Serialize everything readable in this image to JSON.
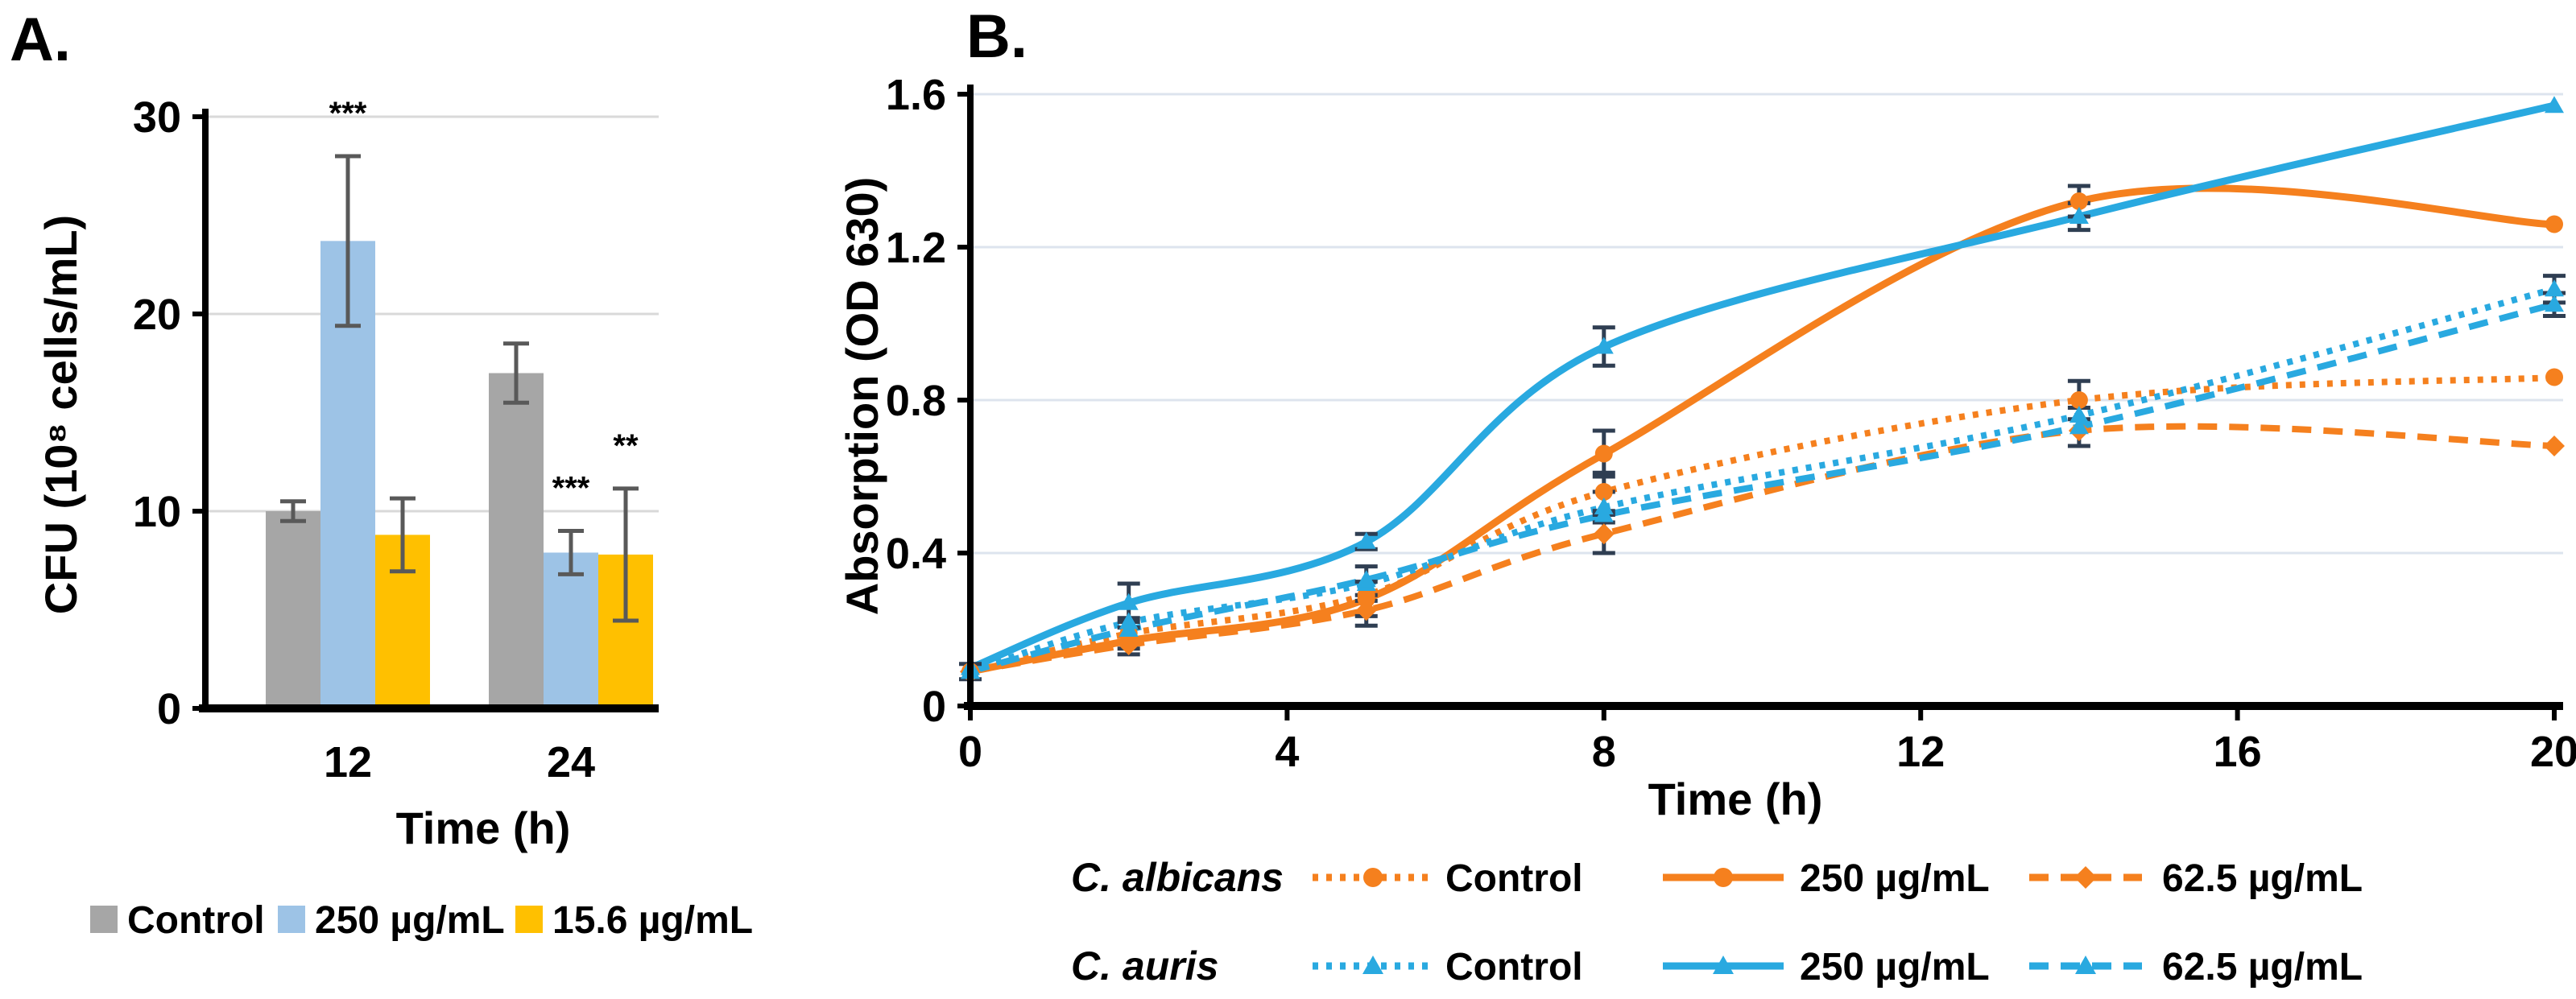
{
  "panels": {
    "a": {
      "label": "A."
    },
    "b": {
      "label": "B."
    }
  },
  "colors": {
    "albicans_orange": "#F5801E",
    "auris_blue": "#29A9E0",
    "bar_gray": "#A6A6A6",
    "bar_blue": "#9DC3E6",
    "bar_gold": "#FFC000",
    "errorbar_a": "#595959",
    "errorbar_b": "#2F3E52",
    "grid_a": "#D9D9D9",
    "grid_b": "#DDE4EE",
    "axis": "#000000"
  },
  "chart_data": [
    {
      "panel": "A",
      "type": "bar",
      "title": "",
      "xlabel": "Time (h)",
      "ylabel": "CFU (10⁸ cells/mL)",
      "categories": [
        "12",
        "24"
      ],
      "yticks": [
        0,
        10,
        20,
        30
      ],
      "ylim": [
        0,
        30
      ],
      "grid": true,
      "legend_position": "bottom",
      "series": [
        {
          "name": "Control",
          "color": "#A6A6A6",
          "values": [
            10.0,
            17.0
          ],
          "errors": [
            0.5,
            1.5
          ],
          "significance": [
            null,
            null
          ]
        },
        {
          "name": "250 µg/mL",
          "color": "#9DC3E6",
          "values": [
            23.7,
            7.9
          ],
          "errors": [
            4.3,
            1.1
          ],
          "significance": [
            "***",
            "***"
          ]
        },
        {
          "name": "15.6 µg/mL",
          "color": "#FFC000",
          "values": [
            8.8,
            7.8
          ],
          "errors": [
            1.85,
            3.35
          ],
          "significance": [
            null,
            "**"
          ]
        }
      ]
    },
    {
      "panel": "B",
      "type": "line",
      "title": "",
      "xlabel": "Time (h)",
      "ylabel": "Absorption (OD 630)",
      "x": [
        0,
        2,
        5,
        8,
        14,
        20
      ],
      "xticks": [
        0,
        4,
        8,
        12,
        16,
        20
      ],
      "yticks": [
        0,
        0.4,
        0.8,
        1.2,
        1.6
      ],
      "xlim": [
        0,
        20
      ],
      "ylim": [
        0,
        1.6
      ],
      "grid": true,
      "legend_position": "bottom",
      "groups": [
        {
          "species": "C. albicans",
          "color": "#F5801E",
          "series": [
            {
              "name": "Control",
              "style": "dotted",
              "marker": "circle",
              "values": [
                0.09,
                0.19,
                0.29,
                0.56,
                0.8,
                0.86
              ],
              "errors": [
                0,
                0.04,
                0,
                0.05,
                0.05,
                0
              ]
            },
            {
              "name": "250 µg/mL",
              "style": "solid",
              "marker": "circle",
              "values": [
                0.09,
                0.17,
                0.28,
                0.66,
                1.32,
                1.26
              ],
              "errors": [
                0.02,
                0.035,
                0.045,
                0.06,
                0.04,
                0
              ]
            },
            {
              "name": "62.5 µg/mL",
              "style": "dashed",
              "marker": "diamond",
              "values": [
                0.09,
                0.16,
                0.25,
                0.45,
                0.72,
                0.68
              ],
              "errors": [
                0,
                0,
                0.04,
                0.05,
                0,
                0
              ]
            }
          ]
        },
        {
          "species": "C. auris",
          "color": "#29A9E0",
          "series": [
            {
              "name": "Control",
              "style": "dotted",
              "marker": "triangle",
              "values": [
                0.09,
                0.22,
                0.32,
                0.52,
                0.76,
                1.09
              ],
              "errors": [
                0,
                0,
                0.045,
                0.04,
                0,
                0.035
              ]
            },
            {
              "name": "250 µg/mL",
              "style": "solid",
              "marker": "triangle",
              "values": [
                0.1,
                0.27,
                0.43,
                0.94,
                1.28,
                1.57
              ],
              "errors": [
                0,
                0.05,
                0.02,
                0.05,
                0.035,
                0
              ]
            },
            {
              "name": "62.5 µg/mL",
              "style": "dashed",
              "marker": "triangle",
              "values": [
                0.09,
                0.2,
                0.33,
                0.5,
                0.73,
                1.05
              ],
              "errors": [
                0,
                0,
                0,
                0,
                0.05,
                0.03
              ]
            }
          ]
        }
      ]
    }
  ]
}
